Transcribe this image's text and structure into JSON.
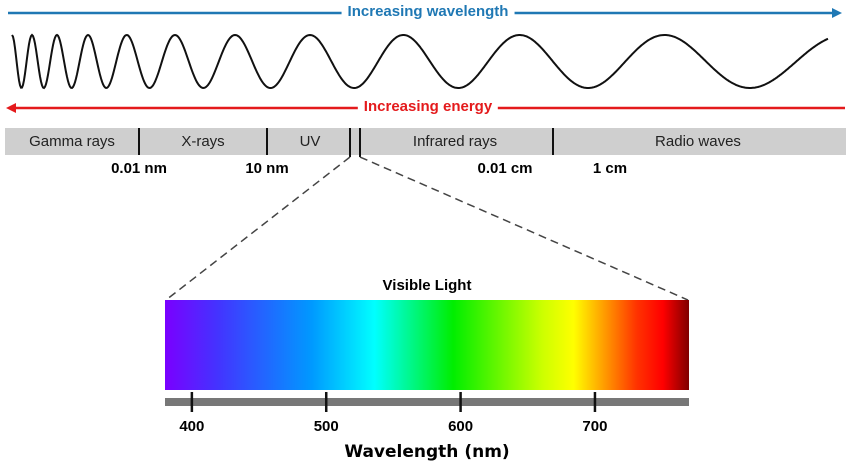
{
  "top_arrow": {
    "label": "Increasing wavelength",
    "color": "#1f78b4",
    "direction": "right"
  },
  "bottom_arrow": {
    "label": "Increasing energy",
    "color": "#e41a1c",
    "direction": "left"
  },
  "bands": [
    "Gamma rays",
    "X-rays",
    "UV",
    "Infrared rays",
    "Radio waves"
  ],
  "band_boundaries": [
    "0.01 nm",
    "10 nm",
    "0.01 cm",
    "1 cm"
  ],
  "visible": {
    "title": "Visible Light",
    "axis_label": "Wavelength (nm)",
    "range_nm": [
      380,
      770
    ],
    "ticks": [
      400,
      500,
      600,
      700
    ],
    "gradient_colors": [
      "#7a00ff",
      "#4433ff",
      "#0099ff",
      "#00ffff",
      "#00ee00",
      "#ccff00",
      "#ffff00",
      "#ff9900",
      "#ff3300",
      "#ff0000",
      "#800000"
    ]
  }
}
